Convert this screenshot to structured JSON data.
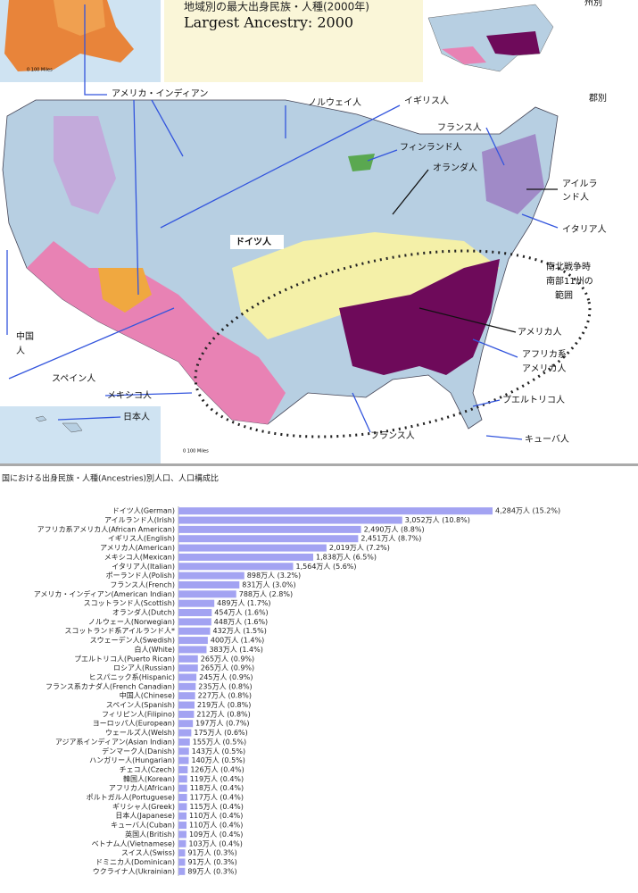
{
  "map": {
    "title_ja": "地域別の最大出身民族・人種(2000年)",
    "title_en": "Largest Ancestry: 2000",
    "state_label": "州別",
    "county_label": "郡別",
    "scale_label": "0  100 Miles",
    "labels": {
      "american_indian": "アメリカ・インディアン",
      "norwegian": "ノルウェイ人",
      "english": "イギリス人",
      "french_ne": "フランス人",
      "finnish": "フィンランド人",
      "dutch": "オランダ人",
      "irish": [
        "アイルラ",
        "ンド人"
      ],
      "italian": "イタリア人",
      "german": "ドイツ人",
      "confederacy": [
        "南北戦争時",
        "南部11州の",
        "範囲"
      ],
      "american": "アメリカ人",
      "african_american": [
        "アフリカ系",
        "アメリカ人"
      ],
      "puerto_rican": "プエルトリコ人",
      "french_south": "フランス人",
      "cuban": "キューバ人",
      "japanese": "日本人",
      "mexican": "メキシコ人",
      "spanish": "スペイン人",
      "chinese": [
        "中国",
        "人"
      ]
    }
  },
  "chart_data": {
    "type": "bar",
    "orientation": "horizontal",
    "title": "国における出身民族・人種(Ancestries)別人口、人口構成比",
    "color": "#a3a3f2",
    "categories": [
      "ドイツ人(German)",
      "アイルランド人(Irish)",
      "アフリカ系アメリカ人(African American)",
      "イギリス人(English)",
      "アメリカ人(American)",
      "メキシコ人(Mexican)",
      "イタリア人(Italian)",
      "ポーランド人(Polish)",
      "フランス人(French)",
      "アメリカ・インディアン(American Indian)",
      "スコットランド人(Scottish)",
      "オランダ人(Dutch)",
      "ノルウェー人(Norwegian)",
      "スコットランド系アイルランド人*",
      "スウェーデン人(Swedish)",
      "白人(White)",
      "プエルトリコ人(Puerto Rican)",
      "ロシア人(Russian)",
      "ヒスパニック系(Hispanic)",
      "フランス系カナダ人(French Canadian)",
      "中国人(Chinese)",
      "スペイン人(Spanish)",
      "フィリピン人(Filipino)",
      "ヨーロッパ人(European)",
      "ウェールズ人(Welsh)",
      "アジア系インディアン(Asian Indian)",
      "デンマーク人(Danish)",
      "ハンガリー人(Hungarian)",
      "チェコ人(Czech)",
      "韓国人(Korean)",
      "アフリカ人(African)",
      "ポルトガル人(Portuguese)",
      "ギリシャ人(Greek)",
      "日本人(Japanese)",
      "キューバ人(Cuban)",
      "英国人(British)",
      "ベトナム人(Vietnamese)",
      "スイス人(Swiss)",
      "ドミニカ人(Dominican)",
      "ウクライナ人(Ukrainian)"
    ],
    "values": [
      4284,
      3052,
      2490,
      2451,
      2019,
      1838,
      1564,
      898,
      831,
      788,
      489,
      454,
      448,
      432,
      400,
      383,
      265,
      265,
      245,
      235,
      227,
      219,
      212,
      197,
      175,
      155,
      143,
      140,
      126,
      119,
      118,
      117,
      115,
      110,
      110,
      109,
      103,
      91,
      91,
      89
    ],
    "value_labels": [
      "4,284万人 (15.2%)",
      "3,052万人 (10.8%)",
      "2,490万人 (8.8%)",
      "2,451万人 (8.7%)",
      "2,019万人 (7.2%)",
      "1,838万人 (6.5%)",
      "1,564万人 (5.6%)",
      "898万人 (3.2%)",
      "831万人 (3.0%)",
      "788万人 (2.8%)",
      "489万人 (1.7%)",
      "454万人 (1.6%)",
      "448万人 (1.6%)",
      "432万人 (1.5%)",
      "400万人 (1.4%)",
      "383万人 (1.4%)",
      "265万人 (0.9%)",
      "265万人 (0.9%)",
      "245万人 (0.9%)",
      "235万人 (0.8%)",
      "227万人 (0.8%)",
      "219万人 (0.8%)",
      "212万人 (0.8%)",
      "197万人 (0.7%)",
      "175万人 (0.6%)",
      "155万人 (0.5%)",
      "143万人 (0.5%)",
      "140万人 (0.5%)",
      "126万人 (0.4%)",
      "119万人 (0.4%)",
      "118万人 (0.4%)",
      "117万人 (0.4%)",
      "115万人 (0.4%)",
      "110万人 (0.4%)",
      "110万人 (0.4%)",
      "109万人 (0.4%)",
      "103万人 (0.4%)",
      "91万人 (0.3%)",
      "91万人 (0.3%)",
      "89万人 (0.3%)"
    ]
  }
}
